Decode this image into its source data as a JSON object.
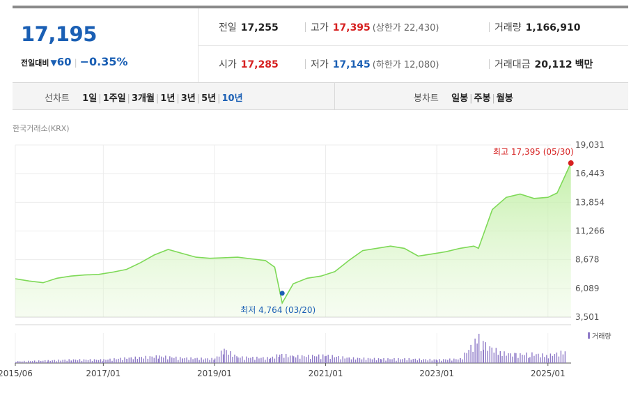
{
  "quote": {
    "price": "17,195",
    "change_label": "전일대비",
    "change": "60",
    "change_pct": "−0.35%",
    "prev_label": "전일",
    "prev": "17,255",
    "open_label": "시가",
    "open": "17,285",
    "high_label": "고가",
    "high": "17,395",
    "upper_limit": "(상한가 22,430)",
    "low_label": "저가",
    "low": "17,145",
    "lower_limit": "(하한가 12,080)",
    "volume_label": "거래량",
    "volume": "1,166,910",
    "turnover_label": "거래대금",
    "turnover": "20,112",
    "turnover_unit": "백만"
  },
  "tabs": {
    "line_label": "선차트",
    "line_periods": [
      "1일",
      "1주일",
      "3개월",
      "1년",
      "3년",
      "5년",
      "10년"
    ],
    "line_active": "10년",
    "candle_label": "봉차트",
    "candle_periods": [
      "일봉",
      "주봉",
      "월봉"
    ]
  },
  "source": "한국거래소(KRX)",
  "colors": {
    "up": "#d62020",
    "down": "#1a5fb4",
    "line": "#7ed957",
    "fill": "#e6f8d8",
    "volume": "#8f7bc8"
  },
  "chart_data": {
    "type": "area",
    "title": "",
    "xlabel": "",
    "ylabel": "",
    "y_ticks": [
      "19,031",
      "16,443",
      "13,854",
      "11,266",
      "8,678",
      "6,089",
      "3,501"
    ],
    "ylim": [
      3501,
      19031
    ],
    "x_ticks": [
      "2015/06",
      "2017/01",
      "2019/01",
      "2021/01",
      "2023/01",
      "2025/01"
    ],
    "xlim": [
      "2015/06",
      "2025/06"
    ],
    "grid": true,
    "max_annotation": {
      "text": "최고 17,395 (05/30)",
      "x": "2025/05/30",
      "y": 17395
    },
    "min_annotation": {
      "text": "최저 4,764 (03/20)",
      "x": "2020/03/20",
      "y": 4764
    },
    "series": [
      {
        "x": [
          "2015/06",
          "2015/09",
          "2015/12",
          "2016/03",
          "2016/06",
          "2016/09",
          "2016/12",
          "2017/03",
          "2017/06",
          "2017/09",
          "2017/12",
          "2018/03",
          "2018/06",
          "2018/09",
          "2018/12",
          "2019/03",
          "2019/06",
          "2019/09",
          "2019/12",
          "2020/02",
          "2020/03/20",
          "2020/06",
          "2020/09",
          "2020/12",
          "2021/03",
          "2021/06",
          "2021/09",
          "2021/12",
          "2022/03",
          "2022/06",
          "2022/09",
          "2022/12",
          "2023/03",
          "2023/06",
          "2023/09",
          "2023/10",
          "2024/01",
          "2024/04",
          "2024/07",
          "2024/10",
          "2025/01",
          "2025/03",
          "2025/05/30"
        ],
        "values": [
          6950,
          6750,
          6600,
          7000,
          7200,
          7300,
          7350,
          7550,
          7800,
          8400,
          9100,
          9600,
          9250,
          8900,
          8800,
          8850,
          8900,
          8750,
          8600,
          8000,
          4764,
          6500,
          7000,
          7200,
          7600,
          8600,
          9500,
          9700,
          9900,
          9700,
          9000,
          9200,
          9400,
          9700,
          9900,
          9700,
          13200,
          14300,
          14600,
          14200,
          14300,
          14700,
          17395
        ]
      }
    ],
    "volume_series": {
      "name": "거래량",
      "x": [
        "2015/06",
        "2016/01",
        "2016/06",
        "2017/01",
        "2017/06",
        "2018/01",
        "2018/06",
        "2019/01",
        "2019/03",
        "2019/06",
        "2020/01",
        "2020/03",
        "2020/06",
        "2021/01",
        "2021/06",
        "2022/01",
        "2022/06",
        "2023/01",
        "2023/06",
        "2023/10",
        "2023/11",
        "2024/03",
        "2024/06",
        "2024/09",
        "2025/01",
        "2025/05"
      ],
      "values": [
        2,
        3,
        4,
        4,
        6,
        8,
        6,
        5,
        16,
        7,
        6,
        10,
        8,
        9,
        6,
        5,
        5,
        4,
        5,
        30,
        22,
        12,
        10,
        11,
        9,
        14
      ]
    }
  }
}
